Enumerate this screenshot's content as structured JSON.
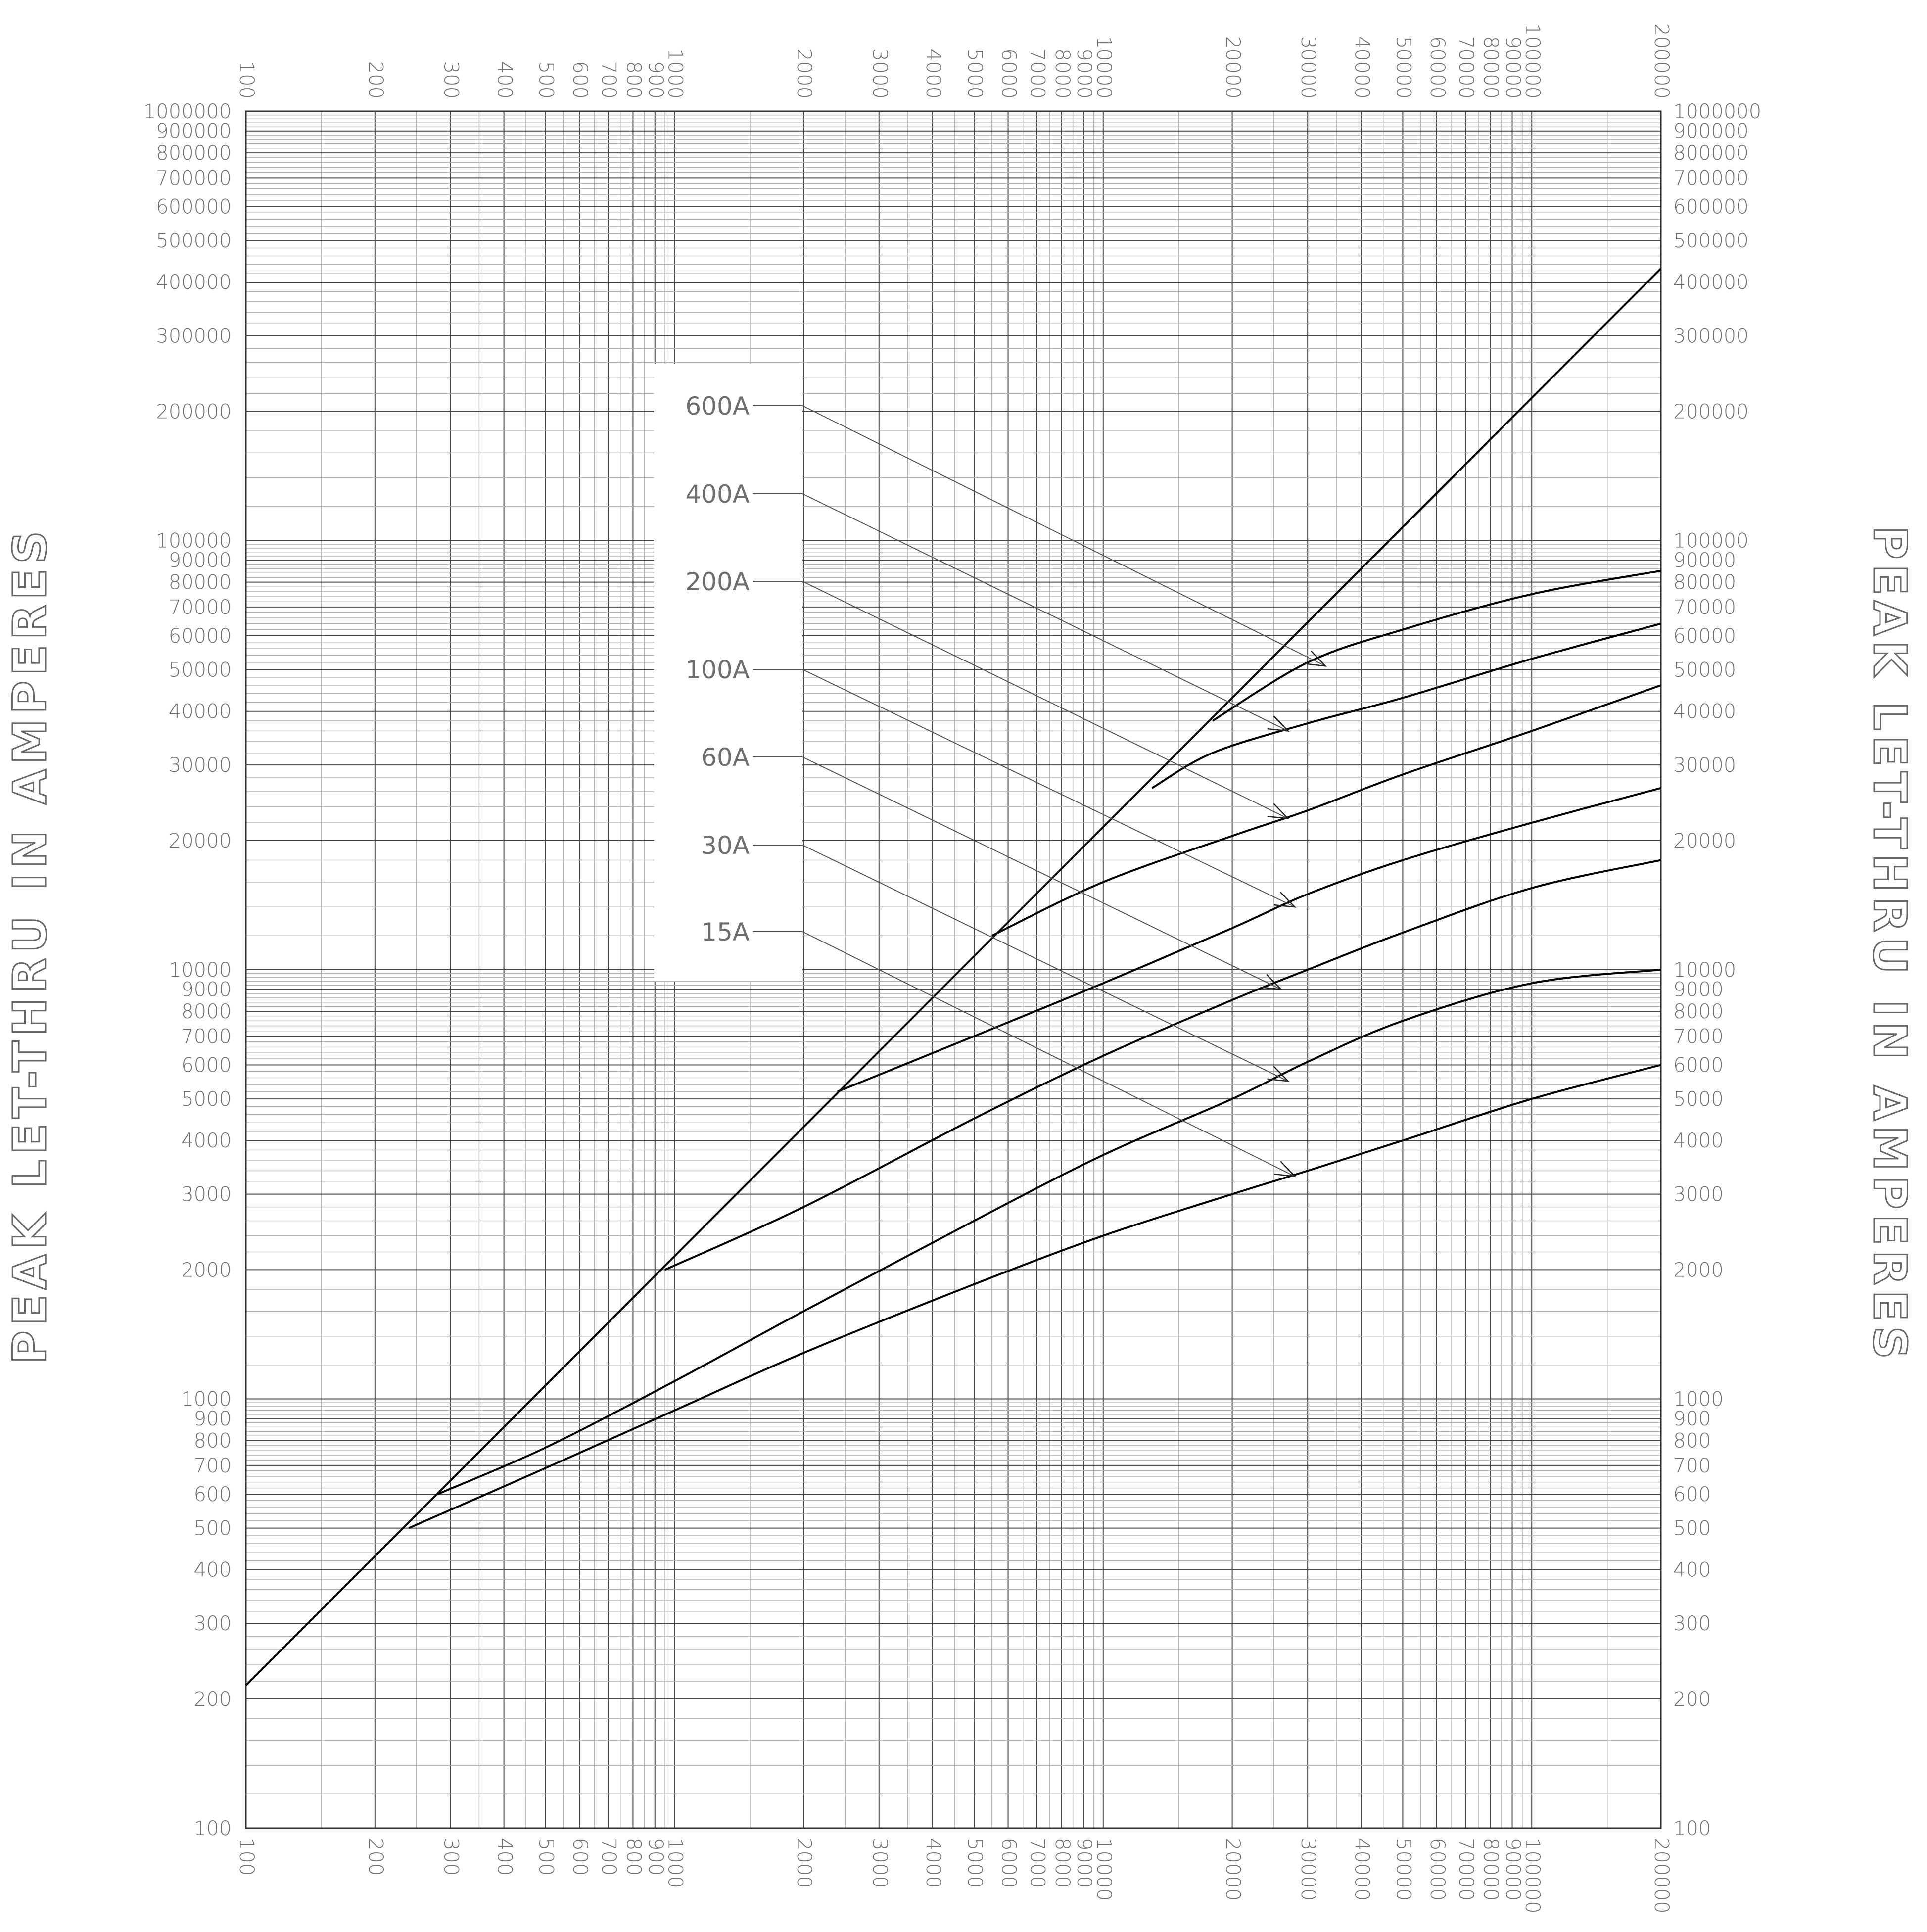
{
  "chart_data": {
    "type": "line",
    "xscale": "log",
    "yscale": "log",
    "xlim": [
      100,
      200000
    ],
    "ylim": [
      100,
      1000000
    ],
    "grid": true,
    "ylabel": "PEAK LET-THRU IN AMPERES",
    "ylabel_right": "PEAK LET-THRU IN AMPERES",
    "x_ticks": [
      "100",
      "200",
      "300",
      "400",
      "500",
      "600",
      "700",
      "800",
      "900",
      "1000",
      "2000",
      "3000",
      "4000",
      "5000",
      "6000",
      "7000",
      "8000",
      "9000",
      "10000",
      "20000",
      "30000",
      "40000",
      "50000",
      "60000",
      "70000",
      "80000",
      "90000",
      "100000",
      "200000"
    ],
    "y_ticks": [
      "100",
      "200",
      "300",
      "400",
      "500",
      "600",
      "700",
      "800",
      "900",
      "1000",
      "2000",
      "3000",
      "4000",
      "5000",
      "6000",
      "7000",
      "8000",
      "9000",
      "10000",
      "20000",
      "30000",
      "40000",
      "50000",
      "60000",
      "70000",
      "80000",
      "90000",
      "100000",
      "200000",
      "300000",
      "400000",
      "500000",
      "600000",
      "700000",
      "800000",
      "900000",
      "1000000"
    ],
    "reference_line": {
      "x": [
        100,
        200000
      ],
      "y": [
        215,
        430000
      ]
    },
    "series": [
      {
        "name": "600A",
        "x": [
          18000,
          30000,
          50000,
          100000,
          200000
        ],
        "y": [
          38000,
          52000,
          62000,
          75000,
          85000
        ]
      },
      {
        "name": "400A",
        "x": [
          13000,
          18000,
          30000,
          50000,
          100000,
          200000
        ],
        "y": [
          26500,
          32000,
          37500,
          43000,
          53000,
          64000
        ]
      },
      {
        "name": "200A",
        "x": [
          5500,
          10000,
          20000,
          30000,
          50000,
          100000,
          200000
        ],
        "y": [
          12000,
          16000,
          20500,
          23500,
          28500,
          36000,
          46000
        ]
      },
      {
        "name": "100A",
        "x": [
          2400,
          5000,
          10000,
          20000,
          30000,
          50000,
          100000,
          200000
        ],
        "y": [
          5200,
          7000,
          9300,
          12500,
          15000,
          18000,
          22000,
          26500
        ]
      },
      {
        "name": "60A",
        "x": [
          950,
          2000,
          5000,
          10000,
          20000,
          30000,
          50000,
          100000,
          200000
        ],
        "y": [
          2000,
          2800,
          4500,
          6300,
          8500,
          10000,
          12200,
          15500,
          18000
        ]
      },
      {
        "name": "30A",
        "x": [
          280,
          500,
          1000,
          2000,
          5000,
          10000,
          20000,
          30000,
          50000,
          100000,
          200000
        ],
        "y": [
          600,
          770,
          1100,
          1600,
          2600,
          3700,
          5000,
          6100,
          7600,
          9300,
          10000
        ]
      },
      {
        "name": "15A",
        "x": [
          240,
          500,
          1000,
          2000,
          5000,
          10000,
          20000,
          30000,
          50000,
          100000,
          200000
        ],
        "y": [
          500,
          690,
          940,
          1280,
          1850,
          2400,
          3000,
          3400,
          4000,
          5000,
          6000
        ]
      }
    ],
    "legend": {
      "placement": "upper-center",
      "items": [
        {
          "label": "600A",
          "series": "600A",
          "arrow_x": 33000,
          "arrow_y": 51000
        },
        {
          "label": "400A",
          "series": "400A",
          "arrow_x": 27000,
          "arrow_y": 36000
        },
        {
          "label": "200A",
          "series": "200A",
          "arrow_x": 27000,
          "arrow_y": 22500
        },
        {
          "label": "100A",
          "series": "100A",
          "arrow_x": 28000,
          "arrow_y": 14000
        },
        {
          "label": "60A",
          "series": "60A",
          "arrow_x": 26000,
          "arrow_y": 9000
        },
        {
          "label": "30A",
          "series": "30A",
          "arrow_x": 27000,
          "arrow_y": 5500
        },
        {
          "label": "15A",
          "series": "15A",
          "arrow_x": 28000,
          "arrow_y": 3300
        }
      ]
    }
  }
}
